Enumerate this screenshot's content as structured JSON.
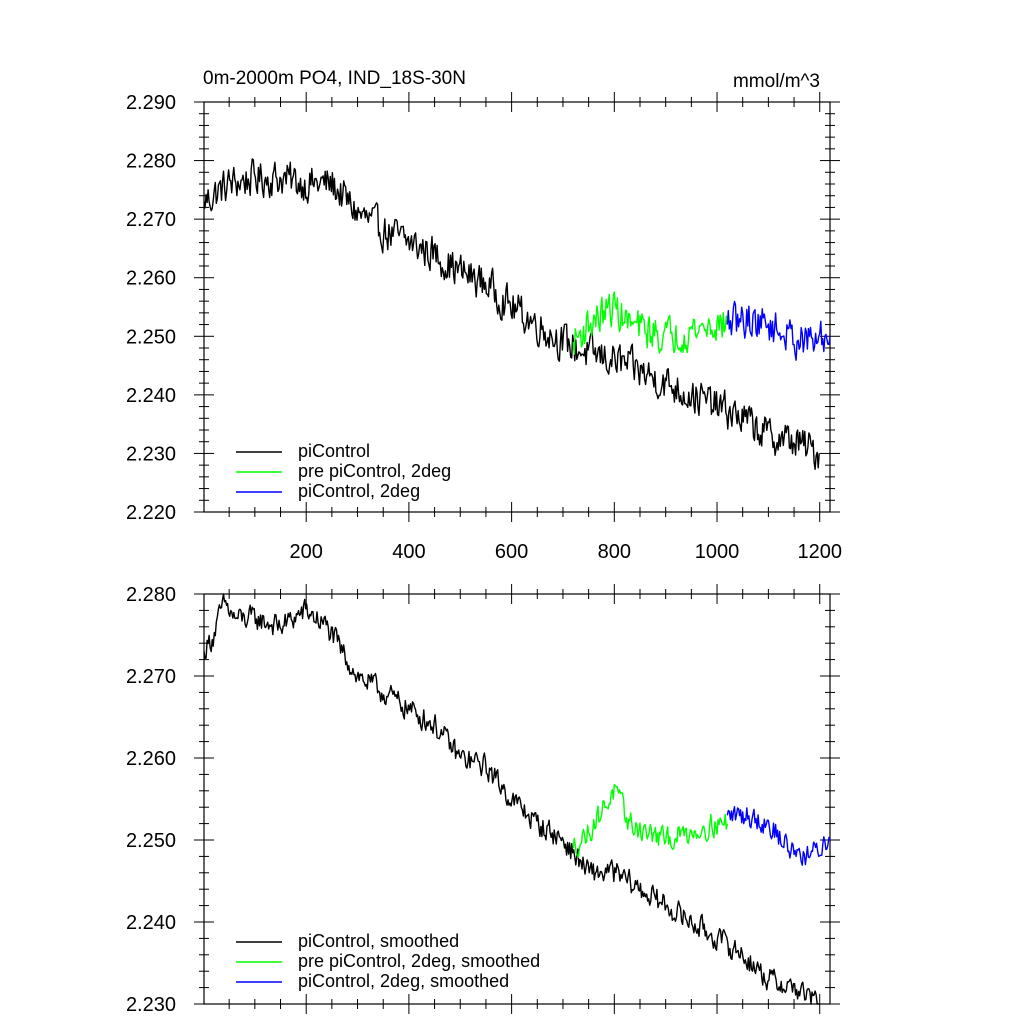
{
  "chart_data": [
    {
      "type": "line",
      "title": "0m-2000m PO4, IND_18S-30N",
      "units": "mmol/m^3",
      "xlim": [
        1,
        1220
      ],
      "ylim": [
        2.22,
        2.29
      ],
      "xticks": [
        200,
        400,
        600,
        800,
        1000,
        1200
      ],
      "xtick_labels": [
        "200",
        "400",
        "600",
        "800",
        "1000",
        "1200"
      ],
      "yticks": [
        2.22,
        2.23,
        2.24,
        2.25,
        2.26,
        2.27,
        2.28,
        2.29
      ],
      "ytick_labels": [
        "2.220",
        "2.230",
        "2.240",
        "2.250",
        "2.260",
        "2.270",
        "2.280",
        "2.290"
      ],
      "legend_position": "bottom-left",
      "series": [
        {
          "name": "piControl",
          "color": "#000000",
          "x": [
            1,
            50,
            100,
            150,
            200,
            250,
            300,
            350,
            400,
            450,
            500,
            550,
            600,
            650,
            700,
            750,
            800,
            850,
            900,
            950,
            1000,
            1050,
            1100,
            1150,
            1200
          ],
          "y": [
            2.273,
            2.276,
            2.277,
            2.277,
            2.276,
            2.276,
            2.271,
            2.268,
            2.266,
            2.264,
            2.261,
            2.259,
            2.255,
            2.252,
            2.249,
            2.247,
            2.246,
            2.244,
            2.242,
            2.24,
            2.238,
            2.236,
            2.233,
            2.232,
            2.23
          ],
          "noise": 0.0028
        },
        {
          "name": "pre piControl, 2deg",
          "color": "#00ff00",
          "x": [
            720,
            750,
            780,
            800,
            830,
            860,
            900,
            950,
            1000,
            1020
          ],
          "y": [
            2.249,
            2.252,
            2.254,
            2.255,
            2.252,
            2.251,
            2.25,
            2.251,
            2.252,
            2.252
          ],
          "noise": 0.0028
        },
        {
          "name": "piControl, 2deg",
          "color": "#0000ff",
          "x": [
            1020,
            1060,
            1100,
            1140,
            1180,
            1220
          ],
          "y": [
            2.252,
            2.253,
            2.252,
            2.25,
            2.249,
            2.25
          ],
          "noise": 0.0028
        }
      ]
    },
    {
      "type": "line",
      "xlim": [
        1,
        1220
      ],
      "ylim": [
        2.23,
        2.28
      ],
      "xticks": [
        200,
        400,
        600,
        800,
        1000,
        1200
      ],
      "yticks": [
        2.23,
        2.24,
        2.25,
        2.26,
        2.27,
        2.28
      ],
      "ytick_labels": [
        "2.230",
        "2.240",
        "2.250",
        "2.260",
        "2.270",
        "2.280"
      ],
      "legend_position": "bottom-left",
      "series": [
        {
          "name": "piControl, smoothed",
          "color": "#000000",
          "x": [
            1,
            20,
            40,
            60,
            100,
            150,
            200,
            240,
            260,
            300,
            350,
            400,
            450,
            500,
            550,
            600,
            650,
            700,
            750,
            800,
            850,
            900,
            950,
            1000,
            1050,
            1100,
            1150,
            1200
          ],
          "y": [
            2.273,
            2.275,
            2.279,
            2.277,
            2.277,
            2.276,
            2.278,
            2.276,
            2.274,
            2.27,
            2.268,
            2.266,
            2.264,
            2.26,
            2.259,
            2.255,
            2.252,
            2.25,
            2.246,
            2.246,
            2.244,
            2.242,
            2.24,
            2.238,
            2.236,
            2.233,
            2.232,
            2.23
          ],
          "noise": 0.0013
        },
        {
          "name": "pre piControl, 2deg, smoothed",
          "color": "#00ff00",
          "x": [
            720,
            750,
            780,
            800,
            830,
            860,
            900,
            950,
            1000,
            1020
          ],
          "y": [
            2.249,
            2.251,
            2.254,
            2.256,
            2.252,
            2.251,
            2.25,
            2.251,
            2.252,
            2.252
          ],
          "noise": 0.0013
        },
        {
          "name": "piControl, 2deg, smoothed",
          "color": "#0000ff",
          "x": [
            1020,
            1060,
            1100,
            1140,
            1180,
            1220
          ],
          "y": [
            2.253,
            2.253,
            2.252,
            2.249,
            2.248,
            2.25
          ],
          "noise": 0.0013
        }
      ]
    }
  ]
}
